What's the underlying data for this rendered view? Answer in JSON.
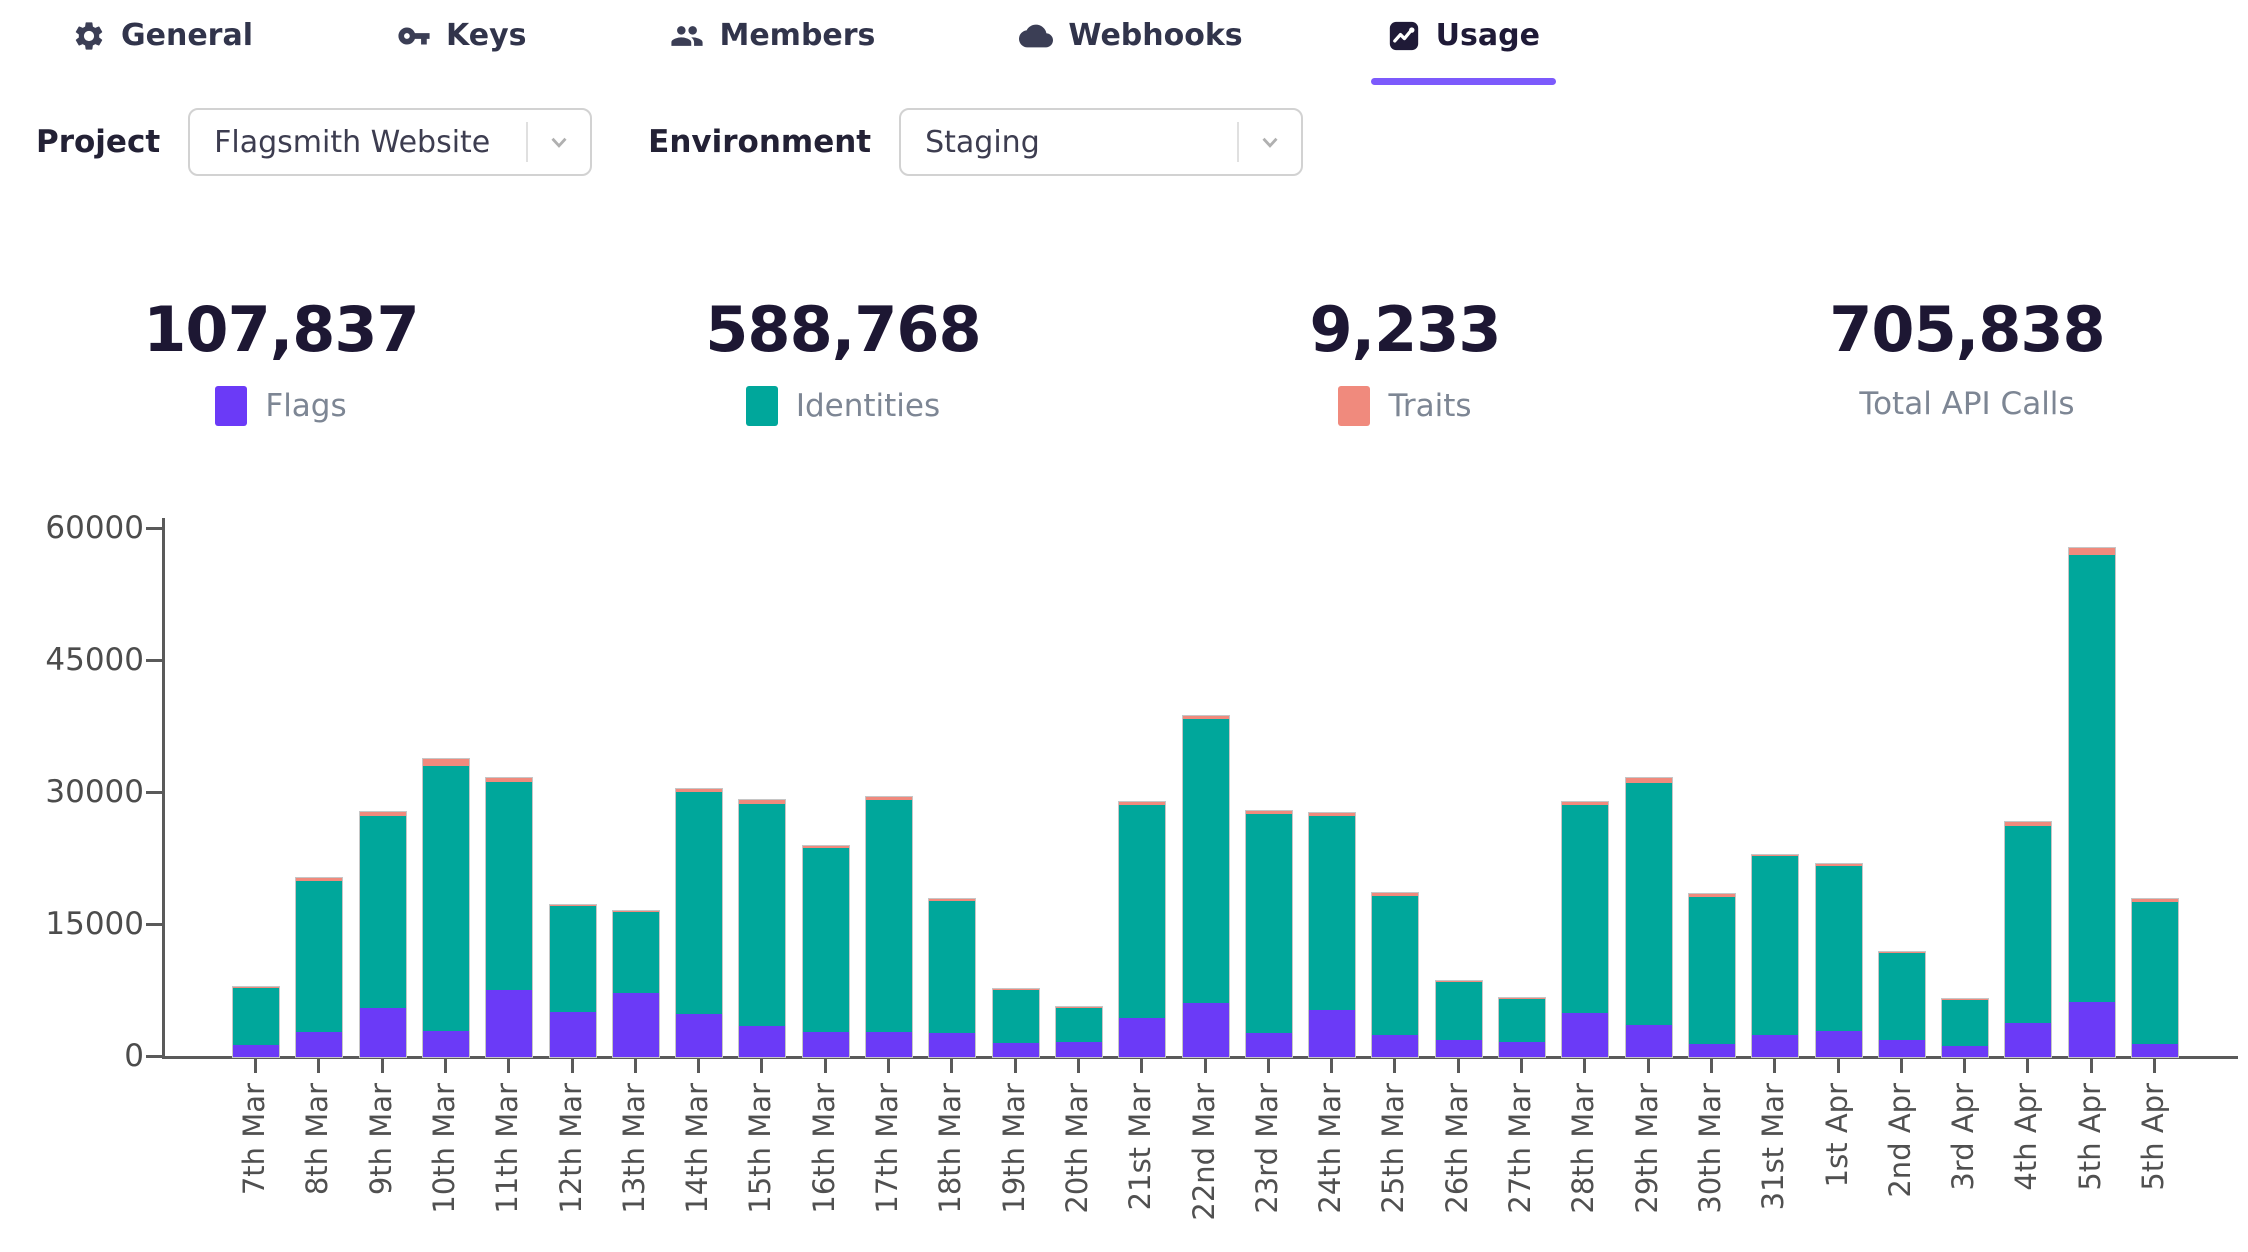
{
  "tabs": [
    {
      "label": "General",
      "icon": "gear-icon",
      "active": false
    },
    {
      "label": "Keys",
      "icon": "key-icon",
      "active": false
    },
    {
      "label": "Members",
      "icon": "members-icon",
      "active": false
    },
    {
      "label": "Webhooks",
      "icon": "cloud-icon",
      "active": false
    },
    {
      "label": "Usage",
      "icon": "chart-icon",
      "active": true
    }
  ],
  "filters": {
    "project_label": "Project",
    "project_value": "Flagsmith Website",
    "environment_label": "Environment",
    "environment_value": "Staging"
  },
  "stats": [
    {
      "value": "107,837",
      "label": "Flags",
      "color": "#6b3af7"
    },
    {
      "value": "588,768",
      "label": "Identities",
      "color": "#00a79b"
    },
    {
      "value": "9,233",
      "label": "Traits",
      "color": "#f08a7d"
    },
    {
      "value": "705,838",
      "label": "Total API Calls",
      "color": null
    }
  ],
  "colors": {
    "accent": "#7c5afc",
    "flags": "#6b3af7",
    "identities": "#00a79b",
    "traits": "#f08a7d",
    "axis": "#5a5a5a"
  },
  "chart_data": {
    "type": "bar",
    "stacked": true,
    "title": "",
    "xlabel": "",
    "ylabel": "",
    "ylim": [
      0,
      60000
    ],
    "yticks": [
      0,
      15000,
      30000,
      45000,
      60000
    ],
    "grid": false,
    "legend_position": "top",
    "x_labels_rotated_90": true,
    "categories": [
      "7th Mar",
      "8th Mar",
      "9th Mar",
      "10th Mar",
      "11th Mar",
      "12th Mar",
      "13th Mar",
      "14th Mar",
      "15th Mar",
      "16th Mar",
      "17th Mar",
      "18th Mar",
      "19th Mar",
      "20th Mar",
      "21st Mar",
      "22nd Mar",
      "23rd Mar",
      "24th Mar",
      "25th Mar",
      "26th Mar",
      "27th Mar",
      "28th Mar",
      "29th Mar",
      "30th Mar",
      "31st Mar",
      "1st Apr",
      "2nd Apr",
      "3rd Apr",
      "4th Apr",
      "5th Apr",
      "5th Apr"
    ],
    "series": [
      {
        "name": "Flags",
        "color": "#6b3af7",
        "values": [
          1400,
          2800,
          5600,
          2900,
          7600,
          5100,
          7300,
          4930,
          3500,
          2800,
          2890,
          2700,
          1600,
          1700,
          4400,
          6100,
          2700,
          5300,
          2500,
          1900,
          1700,
          5000,
          3580,
          1500,
          2500,
          2970,
          1900,
          1300,
          3870,
          6300,
          1500
        ]
      },
      {
        "name": "Identities",
        "color": "#00a79b",
        "values": [
          6470,
          17200,
          21810,
          30180,
          23660,
          12020,
          9160,
          25160,
          25200,
          20900,
          26360,
          15020,
          5980,
          3910,
          24230,
          32270,
          24910,
          22100,
          15810,
          6670,
          4870,
          23580,
          27570,
          16710,
          20340,
          18680,
          9910,
          5210,
          22360,
          50800,
          16150
        ]
      },
      {
        "name": "Traits",
        "color": "#f08a7d",
        "values": [
          130,
          300,
          390,
          800,
          480,
          180,
          140,
          310,
          500,
          300,
          250,
          180,
          120,
          90,
          370,
          430,
          290,
          300,
          290,
          100,
          90,
          420,
          550,
          290,
          160,
          250,
          90,
          90,
          470,
          700,
          250
        ]
      }
    ]
  }
}
